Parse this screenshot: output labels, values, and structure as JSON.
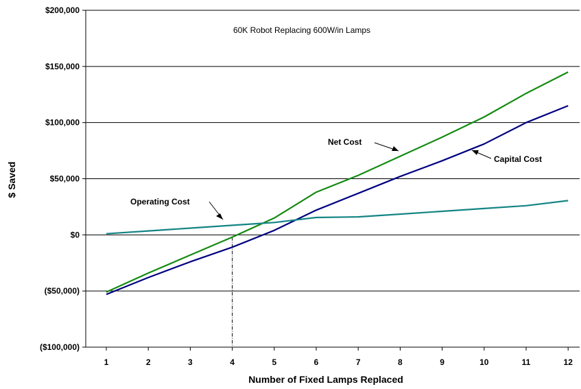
{
  "chart_data": {
    "type": "line",
    "title": "60K Robot Replacing 600W/in Lamps",
    "xlabel": "Number of Fixed Lamps Replaced",
    "ylabel": "$ Saved",
    "x": [
      1,
      2,
      3,
      4,
      5,
      6,
      7,
      8,
      9,
      10,
      11,
      12
    ],
    "ylim": [
      -100000,
      200000
    ],
    "ytick_values": [
      -100000,
      -50000,
      0,
      50000,
      100000,
      150000,
      200000
    ],
    "ytick_labels": [
      "($100,000)",
      "($50,000)",
      "$0",
      "$50,000",
      "$100,000",
      "$150,000",
      "$200,000"
    ],
    "grid": "horizontal",
    "series": [
      {
        "name": "Net Cost",
        "color": "#138A12",
        "values": [
          -51000,
          -34000,
          -18000,
          -2000,
          15000,
          38000,
          53000,
          70000,
          87000,
          105000,
          126000,
          145000
        ]
      },
      {
        "name": "Capital Cost",
        "color": "#000080",
        "values": [
          -53000,
          -38000,
          -24000,
          -11000,
          4000,
          22000,
          37000,
          52000,
          66000,
          81000,
          100000,
          115000
        ]
      },
      {
        "name": "Operating Cost",
        "color": "#138484",
        "values": [
          1000,
          3500,
          6000,
          8500,
          11000,
          15500,
          16000,
          18500,
          21000,
          23500,
          26000,
          30500
        ]
      }
    ],
    "annotations": [
      {
        "text": "Net Cost"
      },
      {
        "text": "Capital Cost"
      },
      {
        "text": "Operating Cost"
      }
    ],
    "reference_line_x": 4
  }
}
